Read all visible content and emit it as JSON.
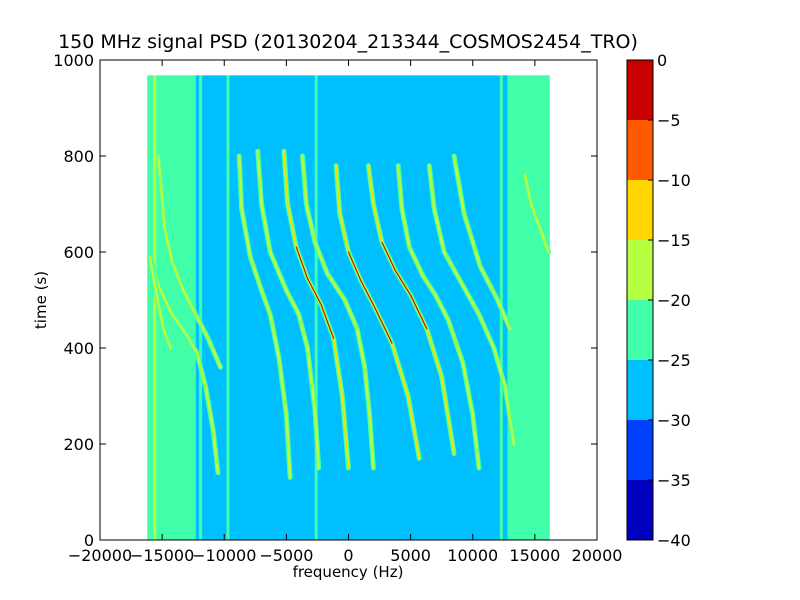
{
  "chart_data": {
    "type": "heatmap",
    "title": "150 MHz signal PSD (20130204_213344_COSMOS2454_TRO)",
    "xlabel": "frequency (Hz)",
    "ylabel": "time (s)",
    "xlim": [
      -20000,
      20000
    ],
    "ylim": [
      0,
      1000
    ],
    "x_ticks": [
      -20000,
      -15000,
      -10000,
      -5000,
      0,
      5000,
      10000,
      15000,
      20000
    ],
    "x_tick_labels": [
      "−20000",
      "−15000",
      "−10000",
      "−5000",
      "0",
      "5000",
      "10000",
      "15000",
      "20000"
    ],
    "y_ticks": [
      0,
      200,
      400,
      600,
      800,
      1000
    ],
    "y_tick_labels": [
      "0",
      "200",
      "400",
      "600",
      "800",
      "1000"
    ],
    "data_extent": {
      "x": [
        -16200,
        16200
      ],
      "y": [
        0,
        968
      ]
    },
    "grid": false,
    "colorbar": {
      "levels": [
        -40,
        -35,
        -30,
        -25,
        -20,
        -15,
        -10,
        -5,
        0
      ],
      "tick_labels": [
        "−40",
        "−35",
        "−30",
        "−25",
        "−20",
        "−15",
        "−10",
        "−5",
        "0"
      ],
      "colors": [
        "#0000bf",
        "#0040ff",
        "#00bfff",
        "#40ffa8",
        "#b7ff41",
        "#ffd400",
        "#ff5a00",
        "#c80000"
      ]
    },
    "background_bands": [
      {
        "x": [
          -16200,
          -12300
        ],
        "level": -22.5
      },
      {
        "x": [
          -12300,
          12800
        ],
        "level": -27.5
      },
      {
        "x": [
          12800,
          16200
        ],
        "level": -22.5
      }
    ],
    "traces": [
      {
        "points": [
          [
            -16000,
            590
          ],
          [
            -15300,
            530
          ],
          [
            -14200,
            470
          ],
          [
            -13100,
            430
          ],
          [
            -12200,
            390
          ],
          [
            -11500,
            320
          ],
          [
            -10900,
            230
          ],
          [
            -10500,
            140
          ]
        ],
        "peak": -17.5
      },
      {
        "points": [
          [
            -15300,
            800
          ],
          [
            -14800,
            650
          ],
          [
            -14200,
            580
          ],
          [
            -13300,
            520
          ],
          [
            -12300,
            470
          ],
          [
            -11300,
            420
          ],
          [
            -10300,
            360
          ]
        ],
        "peak": -17.5
      },
      {
        "points": [
          [
            -8800,
            800
          ],
          [
            -8600,
            690
          ],
          [
            -7900,
            590
          ],
          [
            -7000,
            520
          ],
          [
            -6300,
            470
          ],
          [
            -5600,
            380
          ],
          [
            -5000,
            260
          ],
          [
            -4700,
            130
          ]
        ],
        "peak": -17.5
      },
      {
        "points": [
          [
            -7300,
            810
          ],
          [
            -7000,
            700
          ],
          [
            -6300,
            600
          ],
          [
            -5000,
            520
          ],
          [
            -4000,
            470
          ],
          [
            -3300,
            400
          ],
          [
            -2700,
            270
          ],
          [
            -2400,
            150
          ]
        ],
        "peak": -17.5
      },
      {
        "points": [
          [
            -5200,
            810
          ],
          [
            -4900,
            700
          ],
          [
            -4200,
            610
          ],
          [
            -3300,
            545
          ],
          [
            -2200,
            490
          ],
          [
            -1200,
            420
          ],
          [
            -500,
            300
          ],
          [
            0,
            150
          ]
        ],
        "peak": -12.5
      },
      {
        "points": [
          [
            -3700,
            800
          ],
          [
            -3400,
            700
          ],
          [
            -2700,
            620
          ],
          [
            -1700,
            555
          ],
          [
            -300,
            500
          ],
          [
            700,
            440
          ],
          [
            1300,
            360
          ],
          [
            1700,
            260
          ],
          [
            2000,
            150
          ]
        ],
        "peak": -17.5
      },
      {
        "points": [
          [
            -1000,
            780
          ],
          [
            -700,
            680
          ],
          [
            0,
            600
          ],
          [
            1000,
            540
          ],
          [
            2000,
            490
          ],
          [
            3500,
            410
          ],
          [
            4800,
            300
          ],
          [
            5700,
            170
          ]
        ],
        "peak": -12.5
      },
      {
        "points": [
          [
            1600,
            780
          ],
          [
            2000,
            700
          ],
          [
            2700,
            620
          ],
          [
            3800,
            560
          ],
          [
            5000,
            510
          ],
          [
            6300,
            440
          ],
          [
            7500,
            340
          ],
          [
            8500,
            180
          ]
        ],
        "peak": -12.5
      },
      {
        "points": [
          [
            4000,
            780
          ],
          [
            4300,
            690
          ],
          [
            4900,
            610
          ],
          [
            6000,
            550
          ],
          [
            7000,
            510
          ],
          [
            8000,
            460
          ],
          [
            9200,
            370
          ],
          [
            10000,
            260
          ],
          [
            10500,
            150
          ]
        ],
        "peak": -17.5
      },
      {
        "points": [
          [
            6500,
            780
          ],
          [
            6900,
            690
          ],
          [
            7700,
            600
          ],
          [
            9000,
            540
          ],
          [
            10500,
            470
          ],
          [
            11700,
            400
          ],
          [
            12600,
            320
          ],
          [
            13300,
            200
          ]
        ],
        "peak": -17.5
      },
      {
        "points": [
          [
            8500,
            800
          ],
          [
            9300,
            680
          ],
          [
            10600,
            570
          ],
          [
            12000,
            500
          ],
          [
            13000,
            440
          ]
        ],
        "peak": -17.5
      },
      {
        "points": [
          [
            14200,
            760
          ],
          [
            14700,
            700
          ],
          [
            15400,
            650
          ],
          [
            16100,
            600
          ]
        ],
        "peak": -17.5
      },
      {
        "points": [
          [
            -16000,
            590
          ],
          [
            -15500,
            520
          ],
          [
            -14900,
            440
          ],
          [
            -14300,
            400
          ]
        ],
        "peak": -17.5
      }
    ],
    "vertical_lines": [
      {
        "x": -15600,
        "level": -17.5,
        "y": [
          0,
          968
        ]
      },
      {
        "x": -11900,
        "level": -22.5,
        "y": [
          0,
          968
        ]
      },
      {
        "x": -9700,
        "level": -22.5,
        "y": [
          0,
          968
        ]
      },
      {
        "x": -2600,
        "level": -22.5,
        "y": [
          0,
          968
        ]
      },
      {
        "x": 12300,
        "level": -22.5,
        "y": [
          0,
          968
        ]
      }
    ]
  }
}
